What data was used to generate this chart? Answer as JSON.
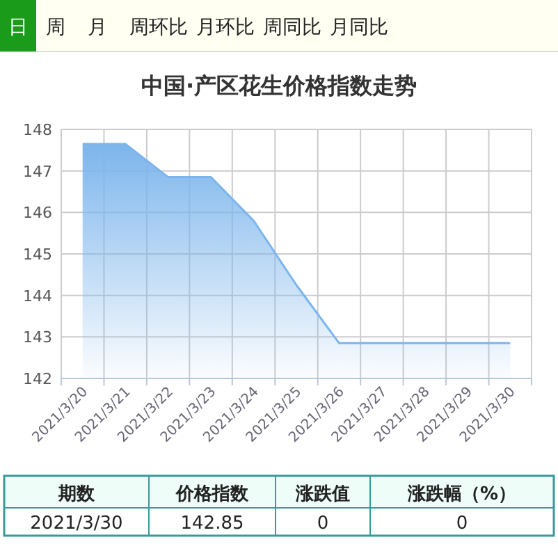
{
  "chart_data": {
    "type": "area",
    "title": "中国·产区花生价格指数走势",
    "categories": [
      "2021/3/20",
      "2021/3/21",
      "2021/3/22",
      "2021/3/23",
      "2021/3/24",
      "2021/3/25",
      "2021/3/26",
      "2021/3/27",
      "2021/3/28",
      "2021/3/29",
      "2021/3/30"
    ],
    "series": [
      {
        "color": "#7cb5ec",
        "values": [
          147.65,
          147.65,
          146.85,
          146.85,
          145.8,
          144.25,
          142.85,
          142.85,
          142.85,
          142.85,
          142.85
        ]
      }
    ],
    "ylim": [
      142,
      148
    ],
    "yticks": [
      142,
      143,
      144,
      145,
      146,
      147,
      148
    ],
    "grid": true,
    "annotations": [
      "日",
      "周",
      "月",
      "周环比",
      "月环比",
      "周同比",
      "月同比",
      "期数",
      "价格指数",
      "涨跌值",
      "涨跌幅（%）",
      "2021/3/30",
      "142.85",
      "0",
      "0"
    ]
  }
}
